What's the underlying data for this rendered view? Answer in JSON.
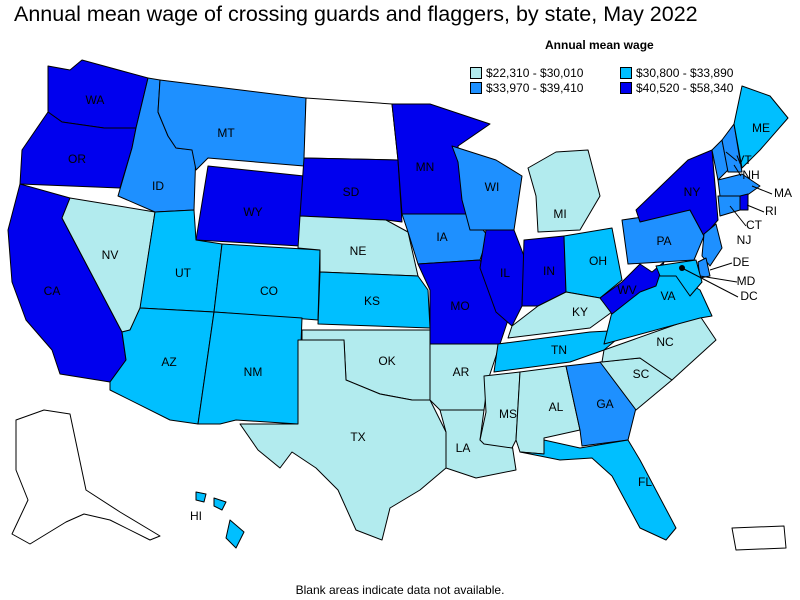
{
  "title": "Annual mean wage of crossing guards and flaggers, by state, May 2022",
  "legend": {
    "title": "Annual mean wage",
    "items": [
      {
        "label": "$22,310 - $30,010",
        "color": "#b2ebee"
      },
      {
        "label": "$30,800 - $33,890",
        "color": "#00bfff"
      },
      {
        "label": "$33,970 - $39,410",
        "color": "#1e90ff"
      },
      {
        "label": "$40,520 - $58,340",
        "color": "#0000ee"
      }
    ]
  },
  "footnote": "Blank areas indicate data not available.",
  "map_data": {
    "type": "choropleth",
    "classes": {
      "c1": "$22,310 - $30,010",
      "c2": "$30,800 - $33,890",
      "c3": "$33,970 - $39,410",
      "c4": "$40,520 - $58,340"
    },
    "states": {
      "WA": "c4",
      "OR": "c4",
      "CA": "c4",
      "NV": "c1",
      "ID": "c3",
      "MT": "c3",
      "WY": "c4",
      "UT": "c2",
      "CO": "c2",
      "AZ": "c2",
      "NM": "c2",
      "ND": "none",
      "SD": "c4",
      "NE": "c1",
      "KS": "c2",
      "OK": "c1",
      "TX": "c1",
      "MN": "c4",
      "IA": "c3",
      "MO": "c4",
      "AR": "c1",
      "LA": "c1",
      "WI": "c3",
      "IL": "c4",
      "MI": "c1",
      "IN": "c4",
      "OH": "c2",
      "KY": "c1",
      "TN": "c2",
      "MS": "c1",
      "AL": "c1",
      "GA": "c3",
      "FL": "c2",
      "SC": "c1",
      "NC": "c1",
      "VA": "c2",
      "WV": "c4",
      "PA": "c3",
      "NY": "c4",
      "VT": "c3",
      "NH": "c3",
      "ME": "c2",
      "MA": "c3",
      "RI": "c4",
      "CT": "c3",
      "NJ": "c3",
      "DE": "c3",
      "MD": "c2",
      "DC": "c4",
      "AK": "none",
      "HI": "c2",
      "PR": "none"
    }
  }
}
